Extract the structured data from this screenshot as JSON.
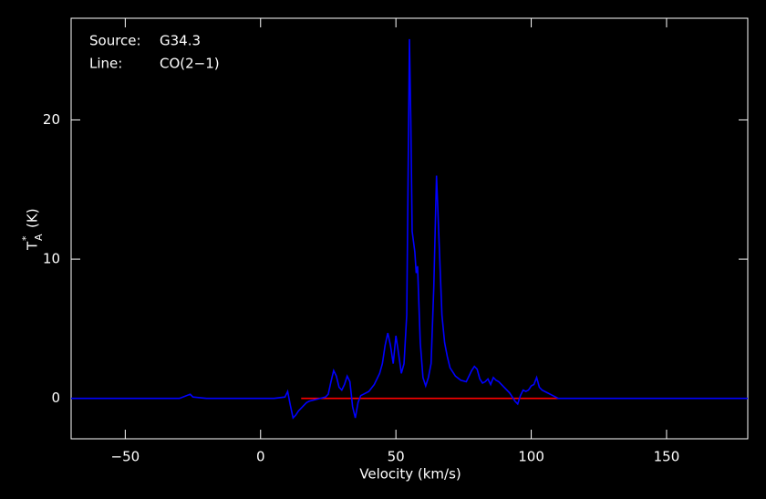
{
  "chart_data": {
    "type": "line",
    "annotations": [
      {
        "label": "Source:",
        "text": "G34.3"
      },
      {
        "label": "Line:",
        "text": "CO(2−1)"
      }
    ],
    "xlabel": "Velocity (km/s)",
    "ylabel": {
      "base": "T",
      "sup": "*",
      "sub": "A",
      "unit": "(K)"
    },
    "xlim": [
      -70,
      180
    ],
    "ylim": [
      -2.9,
      27.3
    ],
    "xticks": [
      {
        "value": -50,
        "label": "−50"
      },
      0,
      50,
      100,
      150
    ],
    "yticks": [
      0,
      10,
      20
    ],
    "x": [
      -70,
      -60,
      -50,
      -40,
      -30,
      -26,
      -25,
      -20,
      -10,
      0,
      5,
      9,
      10,
      11,
      12,
      13,
      14,
      15,
      16,
      17,
      18,
      20,
      22,
      24,
      25,
      26,
      27,
      28,
      29,
      30,
      31,
      32,
      33,
      34,
      35,
      36,
      37,
      38,
      40,
      42,
      44,
      45,
      46,
      47,
      48,
      49,
      50,
      51,
      52,
      53,
      54,
      55,
      55.5,
      56,
      57,
      57.5,
      58,
      59,
      60,
      61,
      62,
      63,
      64,
      65,
      66,
      67,
      68,
      69,
      70,
      72,
      74,
      76,
      78,
      79,
      80,
      81,
      82,
      83,
      84,
      85,
      86,
      87,
      88,
      90,
      92,
      93,
      94,
      95,
      96,
      97,
      98,
      99,
      100,
      101,
      102,
      103,
      104,
      106,
      108,
      110,
      120,
      130,
      140,
      150,
      160,
      170,
      180
    ],
    "series": [
      {
        "color": "#0000ff",
        "values": [
          0,
          0,
          0,
          0,
          0,
          0.3,
          0.1,
          0,
          0,
          0,
          0,
          0.1,
          0.5,
          -0.5,
          -1.4,
          -1.2,
          -0.9,
          -0.7,
          -0.5,
          -0.3,
          -0.2,
          -0.1,
          0,
          0.1,
          0.3,
          1.2,
          2.0,
          1.6,
          0.8,
          0.6,
          1.0,
          1.6,
          1.2,
          -0.6,
          -1.4,
          -0.3,
          0.2,
          0.3,
          0.5,
          1.0,
          1.8,
          2.5,
          3.8,
          4.7,
          3.8,
          2.5,
          4.5,
          3.2,
          1.8,
          2.5,
          6,
          25.8,
          20,
          12,
          10.5,
          9,
          9.5,
          4,
          1.5,
          0.9,
          1.5,
          2.5,
          8,
          16,
          11,
          6,
          4,
          3,
          2.2,
          1.6,
          1.3,
          1.2,
          2.0,
          2.3,
          2.1,
          1.4,
          1.1,
          1.2,
          1.4,
          1.0,
          1.5,
          1.3,
          1.2,
          0.8,
          0.4,
          0.1,
          -0.2,
          -0.4,
          0.2,
          0.6,
          0.5,
          0.6,
          0.9,
          1.0,
          1.5,
          0.8,
          0.6,
          0.4,
          0.2,
          0,
          0,
          0,
          0,
          0,
          0,
          0,
          0
        ]
      },
      {
        "color": "#ff0000",
        "x": [
          15,
          110
        ],
        "values": [
          0,
          0
        ]
      }
    ]
  }
}
